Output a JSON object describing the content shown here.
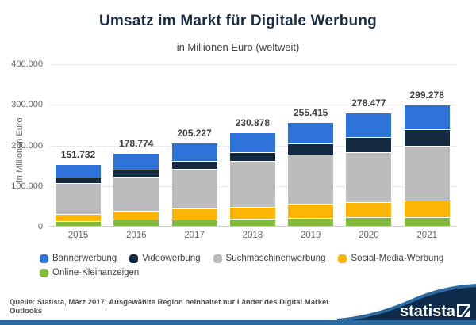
{
  "header": {
    "title": "Umsatz im Markt für Digitale Werbung",
    "subtitle": "in Millionen Euro (weltweit)"
  },
  "y_axis": {
    "label": "in Millionen Euro",
    "ticks": [
      "400.000",
      "300.000",
      "200.000",
      "100.000",
      "0"
    ]
  },
  "chart_data": {
    "type": "bar",
    "stacked": true,
    "title": "Umsatz im Markt für Digitale Werbung",
    "subtitle": "in Millionen Euro (weltweit)",
    "xlabel": "",
    "ylabel": "in Millionen Euro",
    "ylim": [
      0,
      400000
    ],
    "grid": "horizontal-dotted",
    "legend_position": "bottom-left",
    "categories": [
      "2015",
      "2016",
      "2017",
      "2018",
      "2019",
      "2020",
      "2021"
    ],
    "totals": [
      151732,
      178774,
      205227,
      230878,
      255415,
      278477,
      299278
    ],
    "totals_labels": [
      "151.732",
      "178.774",
      "205.227",
      "230.878",
      "255.415",
      "278.477",
      "299.278"
    ],
    "series_note": "series listed bottom-to-top of stack; segment values estimated from bar geometry, sums equal labeled totals",
    "series": [
      {
        "name": "Online-Kleinanzeigen",
        "color": "#84ba3e",
        "values": [
          11000,
          15000,
          16400,
          17600,
          20500,
          21500,
          21500
        ]
      },
      {
        "name": "Social-Media-Werbung",
        "color": "#fcb405",
        "values": [
          18000,
          22000,
          26000,
          30000,
          34000,
          37000,
          41000
        ]
      },
      {
        "name": "Suchmaschinenwerbung",
        "color": "#bcbcbc",
        "values": [
          75732,
          83574,
          98727,
          113278,
          120915,
          122977,
          133778
        ]
      },
      {
        "name": "Videowerbung",
        "color": "#132a40",
        "values": [
          15000,
          18200,
          18200,
          21000,
          27000,
          38000,
          41000
        ]
      },
      {
        "name": "Bannerwerbung",
        "color": "#2d73d7",
        "values": [
          32000,
          40000,
          45900,
          49000,
          53000,
          59000,
          62000
        ]
      }
    ],
    "legend": [
      {
        "label": "Bannerwerbung",
        "color": "#2d73d7"
      },
      {
        "label": "Videowerbung",
        "color": "#132a40"
      },
      {
        "label": "Suchmaschinenwerbung",
        "color": "#bcbcbc"
      },
      {
        "label": "Social-Media-Werbung",
        "color": "#fcb405"
      },
      {
        "label": "Online-Kleinanzeigen",
        "color": "#84ba3e"
      }
    ]
  },
  "footer": {
    "source": "Quelle: Statista, März 2017; Ausgewählte Region beinhaltet nur Länder des Digital Market Outlooks",
    "brand": "statista",
    "brand_bg": "#0d2b4a",
    "accent_blue": "#2b6a9e"
  }
}
